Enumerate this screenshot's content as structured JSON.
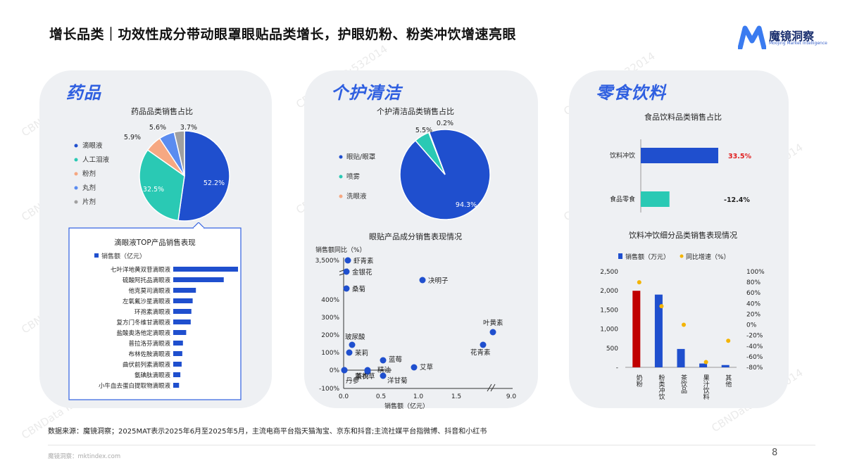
{
  "title": "增长品类｜功效性成分带动眼罩眼贴品类增长，护眼奶粉、粉类冲饮增速亮眼",
  "logo": {
    "name": "魔镜洞察",
    "sub": "Moojing Market Intelligence"
  },
  "watermark": "CBNData ID:532014",
  "panels": {
    "drug": {
      "category": "药品",
      "subtitle": "药品品类销售占比"
    },
    "care": {
      "category": "个护清洁",
      "subtitle": "个护清洁品类销售占比",
      "scatter_subtitle": "眼贴产品成分销售表现情况"
    },
    "food": {
      "category": "零食饮料",
      "subtitle": "食品饮料品类销售占比",
      "bar_subtitle": "饮料冲饮细分品类销售表现情况"
    }
  },
  "colors": {
    "dark_blue": "#1f4fce",
    "teal": "#2ac9b4",
    "orange": "#f6a882",
    "light_blue": "#5b8cf0",
    "gray": "#a0a0a0",
    "red": "#c00000",
    "gold": "#f4b400"
  },
  "chart_data": [
    {
      "type": "pie",
      "title": "药品品类销售占比",
      "legend": [
        "滴眼液",
        "人工泪液",
        "粉剂",
        "丸剂",
        "片剂"
      ],
      "values": [
        52.2,
        32.5,
        5.9,
        5.6,
        3.7
      ],
      "labels": [
        "52.2%",
        "32.5%",
        "5.9%",
        "5.6%",
        "3.7%"
      ],
      "colors": [
        "#1f4fce",
        "#2ac9b4",
        "#f6a882",
        "#5b8cf0",
        "#a0a0a0"
      ]
    },
    {
      "type": "bar",
      "title": "滴眼液TOP产品销售表现",
      "legend": "销售额（亿元）",
      "categories": [
        "七叶洋地黄双苷滴眼液",
        "硫酸阿托品滴眼液",
        "他克莫司滴眼液",
        "左氧氟沙星滴眼液",
        "环孢素滴眼液",
        "复方门冬维甘滴眼液",
        "盐酸奥洛他定滴眼液",
        "普拉洛芬滴眼液",
        "布林佐胺滴眼液",
        "曲伏前列素滴眼液",
        "氨碘肽滴眼液",
        "小牛血去蛋白提取物滴眼液"
      ],
      "values": [
        100,
        78,
        35,
        30,
        28,
        27,
        20,
        15,
        14,
        13,
        11,
        9
      ],
      "orientation": "horizontal",
      "color": "#1f4fce"
    },
    {
      "type": "pie",
      "title": "个护清洁品类销售占比",
      "legend": [
        "眼贴/眼罩",
        "喷雾",
        "洗眼液"
      ],
      "values": [
        94.3,
        5.5,
        0.2
      ],
      "labels": [
        "94.3%",
        "5.5%",
        "0.2%"
      ],
      "colors": [
        "#1f4fce",
        "#2ac9b4",
        "#f6a882"
      ]
    },
    {
      "type": "scatter",
      "title": "眼贴产品成分销售表现情况",
      "xlabel": "销售额（亿元）",
      "ylabel": "销售额同比（%）",
      "x_ticks": [
        "0.0",
        "0.5",
        "1.0",
        "1.5",
        "9.0"
      ],
      "y_ticks": [
        "-100%",
        "0%",
        "100%",
        "200%",
        "300%",
        "400%",
        "3,500%"
      ],
      "points": [
        {
          "name": "虾青素",
          "x": 0.08,
          "y": 3500
        },
        {
          "name": "金银花",
          "x": 0.05,
          "y": 3100
        },
        {
          "name": "桑菊",
          "x": 0.04,
          "y": 2600
        },
        {
          "name": "决明子",
          "x": 1.05,
          "y": 2950
        },
        {
          "name": "叶黄素",
          "x": 8.5,
          "y": 210
        },
        {
          "name": "花青素",
          "x": 8.0,
          "y": 140
        },
        {
          "name": "玻尿酸",
          "x": 0.12,
          "y": 140
        },
        {
          "name": "茉莉",
          "x": 0.1,
          "y": 95
        },
        {
          "name": "茶树",
          "x": 0.02,
          "y": 0
        },
        {
          "name": "蓝莓",
          "x": 0.55,
          "y": 55
        },
        {
          "name": "精油",
          "x": 0.33,
          "y": 0
        },
        {
          "name": "艾草",
          "x": 0.95,
          "y": 15
        },
        {
          "name": "薰衣草",
          "x": 0.32,
          "y": -15
        },
        {
          "name": "洋甘菊",
          "x": 0.55,
          "y": -35
        },
        {
          "name": "丹参",
          "x": 0.02,
          "y": -60
        }
      ]
    },
    {
      "type": "bar",
      "title": "食品饮料品类销售占比",
      "categories": [
        "饮料冲饮",
        "食品零食"
      ],
      "values": [
        33.5,
        -12.4
      ],
      "data_labels": [
        "33.5%",
        "-12.4%"
      ],
      "colors": [
        "#1f4fce",
        "#2ac9b4"
      ],
      "orientation": "horizontal"
    },
    {
      "type": "bar",
      "title": "饮料冲饮细分品类销售表现情况",
      "legend": [
        "销售额（万元）",
        "同比增速（%）"
      ],
      "categories": [
        "奶粉",
        "粉类冲饮",
        "茶饮品",
        "果汁饮料",
        "其他"
      ],
      "series": [
        {
          "name": "销售额（万元）",
          "values": [
            2000,
            1900,
            480,
            100,
            60
          ]
        },
        {
          "name": "同比增速（%）",
          "values": [
            80,
            35,
            0,
            -70,
            -30
          ]
        }
      ],
      "y_ticks_left": [
        "-",
        "500",
        "1,000",
        "1,500",
        "2,000",
        "2,500"
      ],
      "y_ticks_right": [
        "-80%",
        "-60%",
        "-40%",
        "-20%",
        "0%",
        "20%",
        "40%",
        "60%",
        "80%",
        "100%"
      ],
      "ylim_left": [
        0,
        2500
      ],
      "ylim_right": [
        -80,
        100
      ],
      "bar_colors": [
        "#c00000",
        "#1f4fce",
        "#1f4fce",
        "#1f4fce",
        "#1f4fce"
      ],
      "dot_color": "#f4b400"
    }
  ],
  "source": "数据来源：魔镜洞察；2025MAT表示2025年6月至2025年5月，主流电商平台指天猫淘宝、京东和抖音;主流社媒平台指微博、抖音和小红书",
  "footer": "魔镜洞察：mktindex.com",
  "page_number": "8"
}
